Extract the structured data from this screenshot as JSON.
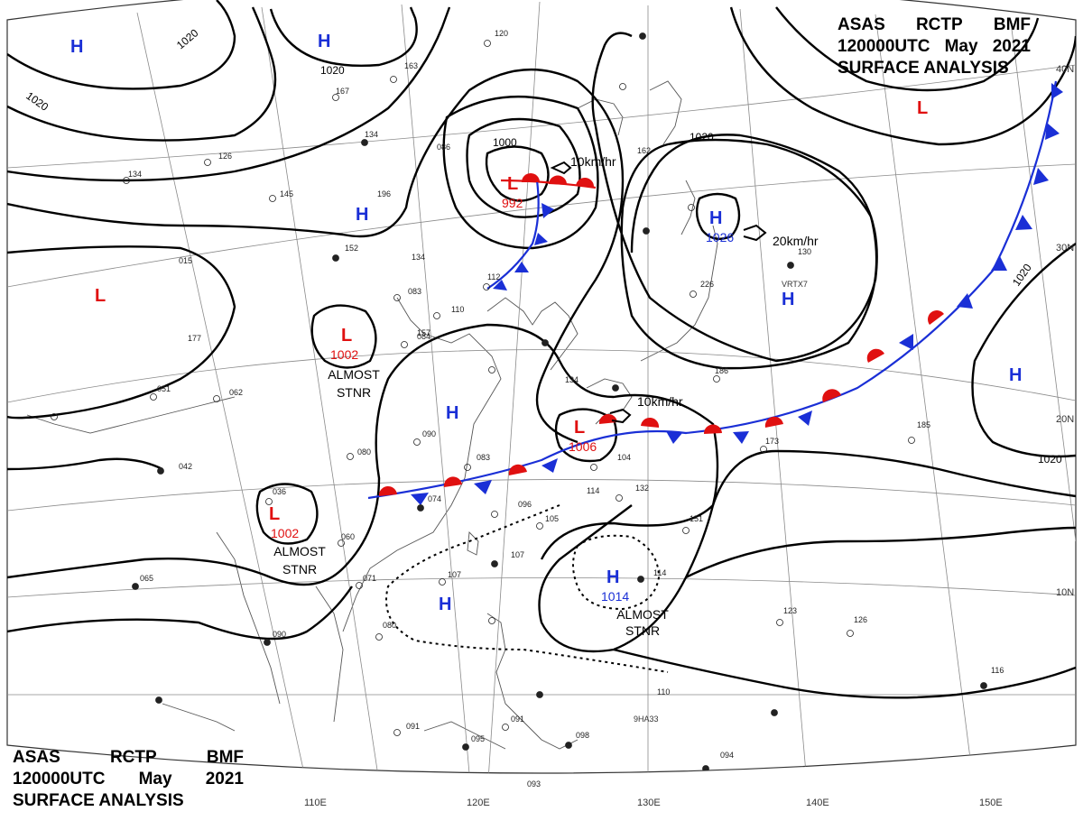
{
  "header": {
    "line1": [
      "ASAS",
      "RCTP",
      "BMF"
    ],
    "line2": [
      "120000UTC",
      "May",
      "2021"
    ],
    "line3": "SURFACE ANALYSIS"
  },
  "colors": {
    "high": "#1a2fd6",
    "low": "#e01010",
    "cold_front": "#1a2fd6",
    "warm_front": "#e01010",
    "isobar": "#000000",
    "grid": "#8a8a8a"
  },
  "longitude_labels": [
    "110E",
    "120E",
    "130E",
    "140E",
    "150E"
  ],
  "latitude_labels": [
    "40N",
    "30N",
    "20N",
    "10N"
  ],
  "pressure_centers": [
    {
      "type": "H",
      "value": ""
    },
    {
      "type": "H",
      "value": ""
    },
    {
      "type": "H",
      "value": ""
    },
    {
      "type": "L",
      "value": "992"
    },
    {
      "type": "H",
      "value": "1026"
    },
    {
      "type": "L",
      "value": ""
    },
    {
      "type": "H",
      "value": ""
    },
    {
      "type": "L",
      "value": ""
    },
    {
      "type": "L",
      "value": "1002"
    },
    {
      "type": "H",
      "value": ""
    },
    {
      "type": "L",
      "value": "1006"
    },
    {
      "type": "H",
      "value": ""
    },
    {
      "type": "L",
      "value": "1002"
    },
    {
      "type": "H",
      "value": ""
    },
    {
      "type": "H",
      "value": "1014"
    }
  ],
  "isobar_labels": [
    "1020",
    "1020",
    "1020",
    "1000",
    "1020",
    "1020",
    "1020",
    "1020"
  ],
  "notes": [
    {
      "lines": [
        "ALMOST",
        "STNR"
      ]
    },
    {
      "lines": [
        "ALMOST",
        "STNR"
      ]
    },
    {
      "lines": [
        "ALMOST",
        "STNR"
      ]
    }
  ],
  "motions": [
    "10km/hr",
    "20km/hr",
    "10km/hr"
  ],
  "station_codes": [
    "VRTX7",
    "9HA33"
  ],
  "station_values": [
    "163",
    "120",
    "167",
    "134",
    "086",
    "126",
    "145",
    "196",
    "134",
    "152",
    "134",
    "083",
    "110",
    "112",
    "130",
    "226",
    "186",
    "015",
    "134",
    "051",
    "062",
    "177",
    "084",
    "080",
    "090",
    "083",
    "104",
    "036",
    "074",
    "096",
    "114",
    "132",
    "042",
    "060",
    "071",
    "107",
    "105",
    "151",
    "114",
    "065",
    "090",
    "107",
    "080",
    "123",
    "126",
    "185",
    "173",
    "091",
    "095",
    "098",
    "091",
    "093",
    "094",
    "116",
    "110",
    "157",
    "162"
  ]
}
